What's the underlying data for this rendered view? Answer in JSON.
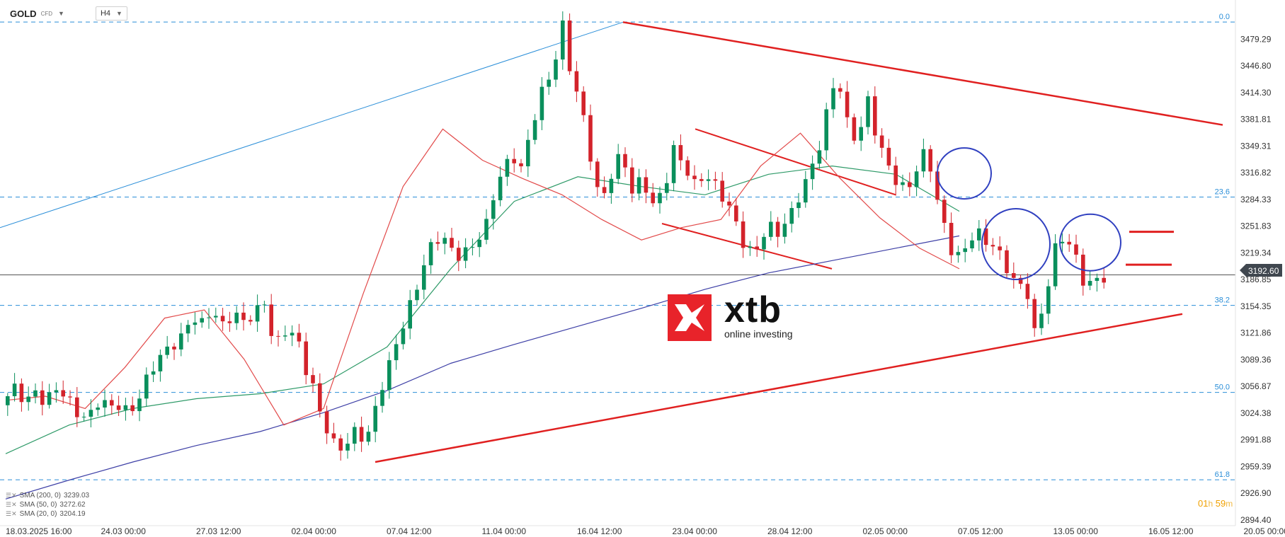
{
  "toolbar": {
    "symbol": "GOLD",
    "symbol_type": "CFD",
    "timeframe": "H4"
  },
  "legend": [
    {
      "label": "SMA (200, 0)",
      "value": "3239.03"
    },
    {
      "label": "SMA (50, 0)",
      "value": "3272.62"
    },
    {
      "label": "SMA (20, 0)",
      "value": "3204.19"
    }
  ],
  "countdown": {
    "hours": "01",
    "h_unit": "h",
    "minutes": "59",
    "m_unit": "m"
  },
  "logo": {
    "word": "xtb",
    "tagline": "online investing"
  },
  "current_price": "3192.60",
  "colors": {
    "bull": "#0a8f5c",
    "bear": "#d3232b",
    "sma20": "#e24a4a",
    "sma50": "#2e9a68",
    "sma200": "#3d3fa6",
    "fib": "#2a8ed8",
    "annotation": "#e02020",
    "circle": "#3040c0"
  },
  "chart_data": {
    "type": "candlestick",
    "ylim": [
      2894.4,
      3508
    ],
    "y_ticks": [
      3479.29,
      3446.8,
      3414.3,
      3381.81,
      3349.31,
      3316.82,
      3284.33,
      3251.83,
      3219.34,
      3186.85,
      3154.35,
      3121.86,
      3089.36,
      3056.87,
      3024.38,
      2991.88,
      2959.39,
      2926.9,
      2894.4
    ],
    "x_ticks": [
      "18.03.2025  16:00",
      "24.03  00:00",
      "27.03  12:00",
      "02.04  00:00",
      "07.04  12:00",
      "11.04  00:00",
      "16.04  12:00",
      "23.04  00:00",
      "28.04  12:00",
      "02.05  00:00",
      "07.05  12:00",
      "13.05  00:00",
      "16.05  12:00",
      "20.05  00:00"
    ],
    "fib_levels": [
      {
        "label": "0.0",
        "price": 3500.1
      },
      {
        "label": "23.6",
        "price": 3287.3
      },
      {
        "label": "38.2",
        "price": 3155.5
      },
      {
        "label": "50.0",
        "price": 3049.6
      },
      {
        "label": "61.8",
        "price": 2943.3
      }
    ],
    "path": [
      [
        3040,
        0
      ],
      [
        3055,
        5
      ],
      [
        3040,
        10
      ],
      [
        3055,
        16
      ],
      [
        3035,
        22
      ],
      [
        3050,
        28
      ],
      [
        3042,
        34
      ],
      [
        3030,
        40
      ],
      [
        3020,
        46
      ],
      [
        3035,
        52
      ],
      [
        3028,
        58
      ],
      [
        3035,
        64
      ],
      [
        3030,
        70
      ],
      [
        3045,
        76
      ],
      [
        3070,
        82
      ],
      [
        3090,
        88
      ],
      [
        3110,
        94
      ],
      [
        3120,
        100
      ],
      [
        3140,
        106
      ],
      [
        3128,
        112
      ],
      [
        3150,
        118
      ],
      [
        3135,
        124
      ],
      [
        3150,
        130
      ],
      [
        3132,
        136
      ],
      [
        3140,
        142
      ],
      [
        3160,
        148
      ],
      [
        3110,
        154
      ],
      [
        3125,
        160
      ],
      [
        3115,
        166
      ],
      [
        3075,
        172
      ],
      [
        3058,
        176
      ],
      [
        3030,
        180
      ],
      [
        3000,
        186
      ],
      [
        2975,
        190
      ],
      [
        2985,
        196
      ],
      [
        3005,
        202
      ],
      [
        2990,
        206
      ],
      [
        3020,
        210
      ],
      [
        3060,
        216
      ],
      [
        3090,
        222
      ],
      [
        3130,
        228
      ],
      [
        3170,
        234
      ],
      [
        3210,
        240
      ],
      [
        3235,
        246
      ],
      [
        3230,
        252
      ],
      [
        3215,
        258
      ],
      [
        3225,
        264
      ],
      [
        3235,
        270
      ],
      [
        3250,
        276
      ],
      [
        3300,
        282
      ],
      [
        3330,
        288
      ],
      [
        3340,
        292
      ],
      [
        3325,
        296
      ],
      [
        3370,
        302
      ],
      [
        3410,
        308
      ],
      [
        3440,
        314
      ],
      [
        3500,
        320
      ],
      [
        3450,
        324
      ],
      [
        3415,
        328
      ],
      [
        3360,
        334
      ],
      [
        3305,
        338
      ],
      [
        3280,
        342
      ],
      [
        3320,
        348
      ],
      [
        3345,
        354
      ],
      [
        3290,
        360
      ],
      [
        3305,
        366
      ],
      [
        3280,
        372
      ],
      [
        3300,
        378
      ],
      [
        3345,
        384
      ],
      [
        3320,
        390
      ],
      [
        3300,
        396
      ],
      [
        3320,
        402
      ],
      [
        3305,
        408
      ],
      [
        3280,
        414
      ],
      [
        3250,
        420
      ],
      [
        3220,
        426
      ],
      [
        3230,
        432
      ],
      [
        3255,
        438
      ],
      [
        3240,
        444
      ],
      [
        3255,
        450
      ],
      [
        3290,
        456
      ],
      [
        3320,
        462
      ],
      [
        3350,
        468
      ],
      [
        3400,
        474
      ],
      [
        3435,
        478
      ],
      [
        3380,
        484
      ],
      [
        3360,
        490
      ],
      [
        3405,
        496
      ],
      [
        3345,
        502
      ],
      [
        3330,
        506
      ],
      [
        3310,
        512
      ],
      [
        3300,
        518
      ],
      [
        3320,
        524
      ],
      [
        3335,
        528
      ],
      [
        3320,
        532
      ],
      [
        3280,
        536
      ],
      [
        3255,
        540
      ],
      [
        3215,
        546
      ],
      [
        3225,
        552
      ],
      [
        3240,
        558
      ],
      [
        3232,
        564
      ],
      [
        3230,
        570
      ],
      [
        3205,
        576
      ],
      [
        3185,
        580
      ],
      [
        3175,
        584
      ],
      [
        3165,
        588
      ],
      [
        3120,
        592
      ],
      [
        3165,
        598
      ],
      [
        3210,
        602
      ],
      [
        3245,
        606
      ],
      [
        3230,
        610
      ],
      [
        3220,
        614
      ],
      [
        3195,
        618
      ],
      [
        3175,
        622
      ],
      [
        3192.6,
        626
      ]
    ],
    "series": [
      {
        "name": "SMA (200, 0)",
        "values": [
          2920,
          2943,
          2965,
          2985,
          3002,
          3025,
          3052,
          3085,
          3108,
          3130,
          3152,
          3175,
          3195,
          3210,
          3225,
          3240
        ]
      },
      {
        "name": "SMA (50, 0)",
        "values": [
          2975,
          3010,
          3030,
          3042,
          3048,
          3060,
          3105,
          3200,
          3282,
          3312,
          3300,
          3290,
          3315,
          3325,
          3315,
          3270
        ]
      },
      {
        "name": "SMA (20, 0)",
        "values": [
          3040,
          3045,
          3030,
          3080,
          3140,
          3150,
          3090,
          3010,
          3030,
          3170,
          3300,
          3370,
          3332,
          3310,
          3290,
          3260,
          3235,
          3250,
          3260,
          3325,
          3365,
          3310,
          3262,
          3225,
          3200
        ]
      }
    ]
  }
}
